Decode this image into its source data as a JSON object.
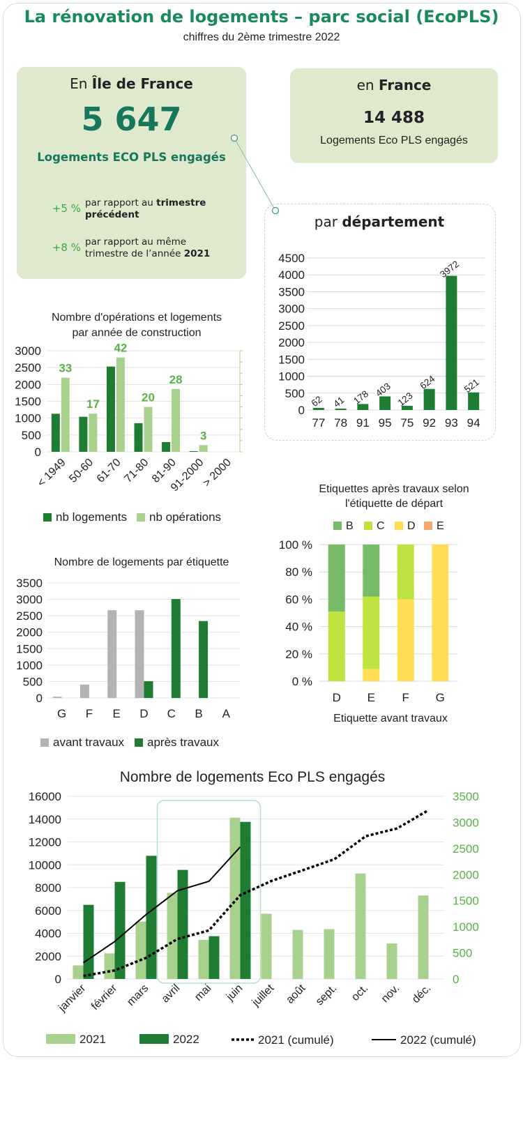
{
  "header": {
    "title": "La rénovation de logements – parc social (EcoPLS)",
    "subtitle": "chiffres du 2ème trimestre 2022"
  },
  "idf": {
    "prefix": "En",
    "region": "Île de France",
    "total": "5 647",
    "label": "Logements ECO PLS engagés",
    "stat1_pct": "+5 %",
    "stat1_text": "par rapport au",
    "stat1_bold": "trimestre précédent",
    "stat2_pct": "+8 %",
    "stat2_text": "par rapport au même trimestre de l’année",
    "stat2_bold": "2021"
  },
  "france": {
    "prefix": "en",
    "region": "France",
    "total": "14 488",
    "label": "Logements Eco PLS engagés"
  },
  "colors": {
    "dark_green": "#1e7d32",
    "light_green": "#a9d18e",
    "gray": "#b3b3b3",
    "label_green": "#5bb04a",
    "etq_B": "#77bb66",
    "etq_C": "#bde33f",
    "etq_D": "#ffdd55",
    "etq_E": "#f4a870"
  },
  "chart_data": [
    {
      "id": "departement",
      "type": "bar",
      "title_prefix": "par",
      "title_bold": "département",
      "categories": [
        "77",
        "78",
        "91",
        "95",
        "75",
        "92",
        "93",
        "94"
      ],
      "values": [
        62,
        41,
        178,
        403,
        123,
        624,
        3972,
        521
      ],
      "ylim": [
        0,
        4500
      ],
      "yticks": [
        0,
        500,
        1000,
        1500,
        2000,
        2500,
        3000,
        3500,
        4000,
        4500
      ],
      "grid": true
    },
    {
      "id": "annee_construction",
      "type": "bar",
      "title": "Nombre d'opérations et logements par année de construction",
      "categories": [
        "< 1949",
        "50-60",
        "61-70",
        "71-80",
        "81-90",
        "91-2000",
        "> 2000"
      ],
      "series": [
        {
          "name": "nb logements",
          "values": [
            1130,
            1040,
            2530,
            850,
            290,
            20,
            0
          ]
        },
        {
          "name": "nb opérations",
          "values": [
            33,
            17,
            42,
            20,
            28,
            3,
            0
          ]
        }
      ],
      "data_labels": [
        "33",
        "17",
        "42",
        "20",
        "28",
        "3",
        ""
      ],
      "ylim": [
        0,
        3000
      ],
      "yticks": [
        0,
        500,
        1000,
        1500,
        2000,
        2500,
        3000
      ],
      "y2lim": [
        0,
        45
      ],
      "legend": "bottom"
    },
    {
      "id": "etiquette",
      "type": "bar",
      "title": "Nombre de logements par étiquette",
      "categories": [
        "G",
        "F",
        "E",
        "D",
        "C",
        "B",
        "A"
      ],
      "series": [
        {
          "name": "avant travaux",
          "values": [
            40,
            410,
            2670,
            2670,
            0,
            0,
            0
          ]
        },
        {
          "name": "après travaux",
          "values": [
            0,
            0,
            0,
            510,
            3010,
            2340,
            0
          ]
        }
      ],
      "ylim": [
        0,
        3500
      ],
      "yticks": [
        0,
        500,
        1000,
        1500,
        2000,
        2500,
        3000,
        3500
      ],
      "legend": "bottom"
    },
    {
      "id": "etiquettes_apres",
      "type": "bar",
      "stacked": true,
      "title": "Etiquettes après travaux selon l'étiquette de départ",
      "xlabel": "Etiquette avant travaux",
      "categories": [
        "D",
        "E",
        "F",
        "G"
      ],
      "series": [
        {
          "name": "B",
          "values": [
            49,
            38,
            0,
            0
          ]
        },
        {
          "name": "C",
          "values": [
            51,
            53,
            40,
            0
          ]
        },
        {
          "name": "D",
          "values": [
            0,
            9,
            60,
            100
          ]
        },
        {
          "name": "E",
          "values": [
            0,
            0,
            0,
            0
          ]
        }
      ],
      "yticks": [
        "0 %",
        "20 %",
        "40 %",
        "60 %",
        "80 %",
        "100 %"
      ],
      "legend": "top"
    },
    {
      "id": "mensuel",
      "type": "bar",
      "title": "Nombre de logements Eco PLS engagés",
      "categories": [
        "janvier",
        "février",
        "mars",
        "avril",
        "mai",
        "juin",
        "juillet",
        "août",
        "sept.",
        "oct.",
        "nov.",
        "déc."
      ],
      "series": [
        {
          "name": "2021",
          "axis": "right",
          "values": [
            260,
            490,
            1100,
            1650,
            750,
            3090,
            1250,
            940,
            955,
            2020,
            680,
            1600
          ]
        },
        {
          "name": "2022",
          "axis": "right",
          "values": [
            1420,
            1860,
            2360,
            2090,
            820,
            3010,
            null,
            null,
            null,
            null,
            null,
            null
          ]
        },
        {
          "name": "2021 (cumulé)",
          "axis": "left",
          "type": "line",
          "style": "dotted",
          "values": [
            260,
            750,
            1850,
            3500,
            4250,
            7340,
            8590,
            9530,
            10485,
            12505,
            13185,
            14785
          ]
        },
        {
          "name": "2022 (cumulé)",
          "axis": "left",
          "type": "line",
          "style": "solid",
          "values": [
            1420,
            3280,
            5640,
            7730,
            8550,
            11560,
            null,
            null,
            null,
            null,
            null,
            null
          ]
        }
      ],
      "ylim": [
        0,
        16000
      ],
      "yticks": [
        0,
        2000,
        4000,
        6000,
        8000,
        10000,
        12000,
        14000,
        16000
      ],
      "y2lim": [
        0,
        3500
      ],
      "y2ticks": [
        0,
        500,
        1000,
        1500,
        2000,
        2500,
        3000,
        3500
      ],
      "legend": "bottom"
    }
  ]
}
